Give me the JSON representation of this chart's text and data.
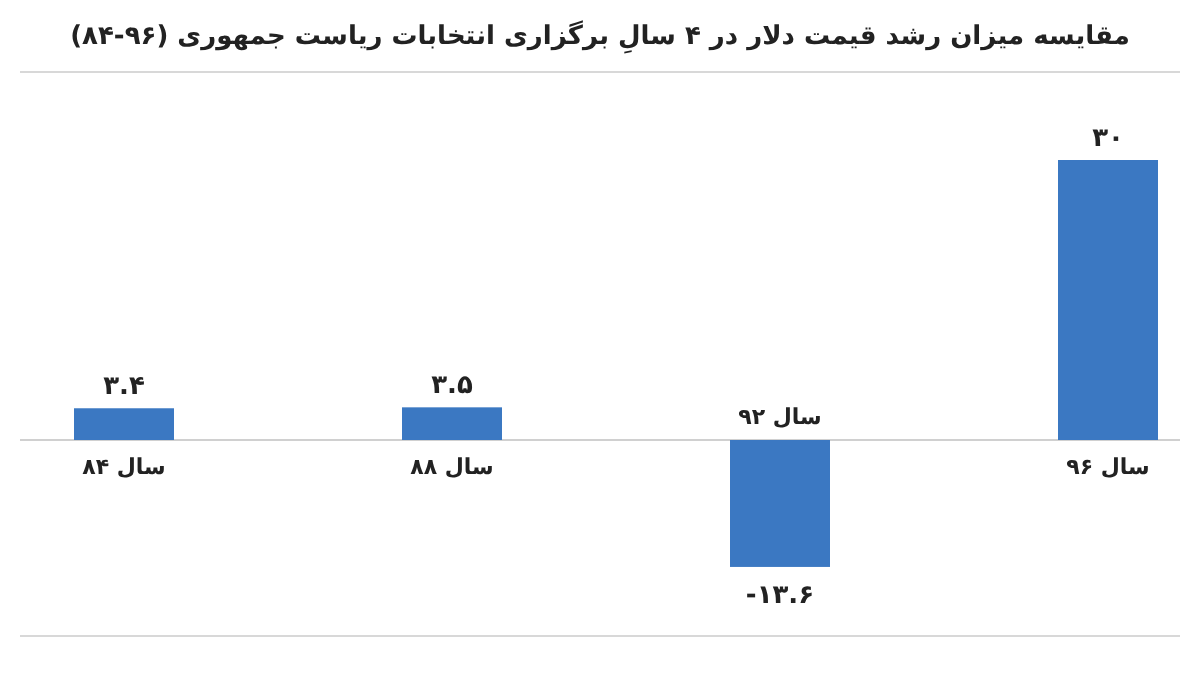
{
  "chart_data": {
    "type": "bar",
    "title": "مقایسه میزان رشد قیمت دلار در ۴ سالِ برگزاری انتخابات ریاست جمهوری (۹۶-۸۴)",
    "categories": [
      "سال ۸۴",
      "سال ۸۸",
      "سال ۹۲",
      "سال ۹۶"
    ],
    "values": [
      3.4,
      3.5,
      -13.6,
      30
    ],
    "value_labels": [
      "۳.۴",
      "۳.۵",
      "-۱۳.۶",
      "۳۰"
    ],
    "color": "#3b78c2"
  }
}
